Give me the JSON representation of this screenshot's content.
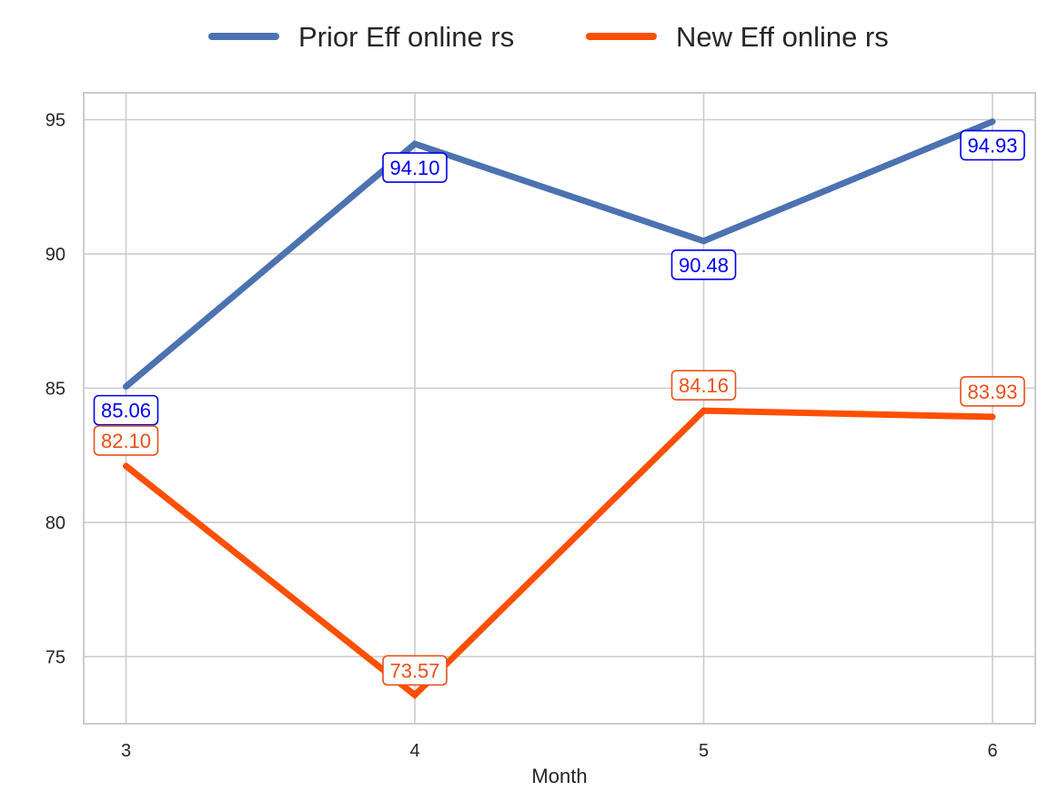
{
  "chart_data": {
    "type": "line",
    "xlabel": "Month",
    "ylabel": "",
    "x": [
      3,
      4,
      5,
      6
    ],
    "ylim": [
      72.5,
      96
    ],
    "yticks": [
      75,
      80,
      85,
      90,
      95
    ],
    "grid": true,
    "legend_position": "top-center",
    "series": [
      {
        "name": "Prior Eff online rs",
        "color": "#4C72B0",
        "label_color": "#0000EE",
        "values": [
          85.06,
          94.1,
          90.48,
          94.93
        ],
        "labels": [
          "85.06",
          "94.10",
          "90.48",
          "94.93"
        ]
      },
      {
        "name": "New Eff online rs",
        "color": "#FF4F00",
        "label_color": "#E8501A",
        "values": [
          82.1,
          73.57,
          84.16,
          83.93
        ],
        "labels": [
          "82.10",
          "73.57",
          "84.16",
          "83.93"
        ]
      }
    ]
  }
}
